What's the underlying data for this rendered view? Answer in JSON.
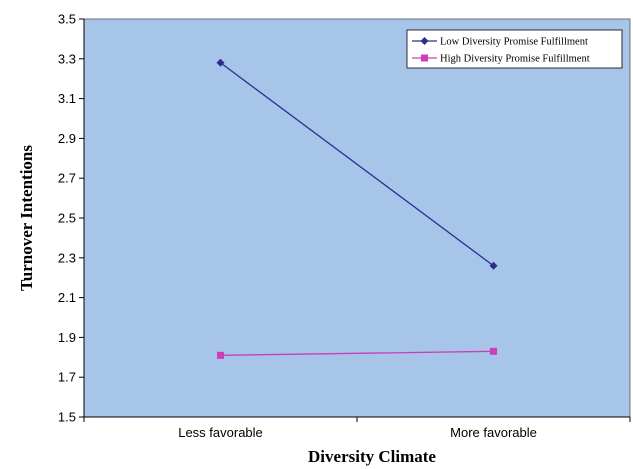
{
  "chart_data": {
    "type": "line",
    "title": "",
    "xlabel": "Diversity Climate",
    "ylabel": "Turnover Intentions",
    "categories": [
      "Less favorable",
      "More favorable"
    ],
    "ylim": [
      1.5,
      3.5
    ],
    "yticks": [
      "1.5",
      "1.7",
      "1.9",
      "2.1",
      "2.3",
      "2.5",
      "2.7",
      "2.9",
      "3.1",
      "3.3",
      "3.5"
    ],
    "grid": false,
    "legend": "top-right",
    "plot_background": "#a6c5e8",
    "series": [
      {
        "name": "Low Diversity Promise Fulfillment",
        "values": [
          3.28,
          2.26
        ],
        "color": "#2e2e8e",
        "marker": "diamond"
      },
      {
        "name": "High Diversity Promise Fulfillment",
        "values": [
          1.81,
          1.83
        ],
        "color": "#cc3fb8",
        "marker": "square"
      }
    ]
  }
}
